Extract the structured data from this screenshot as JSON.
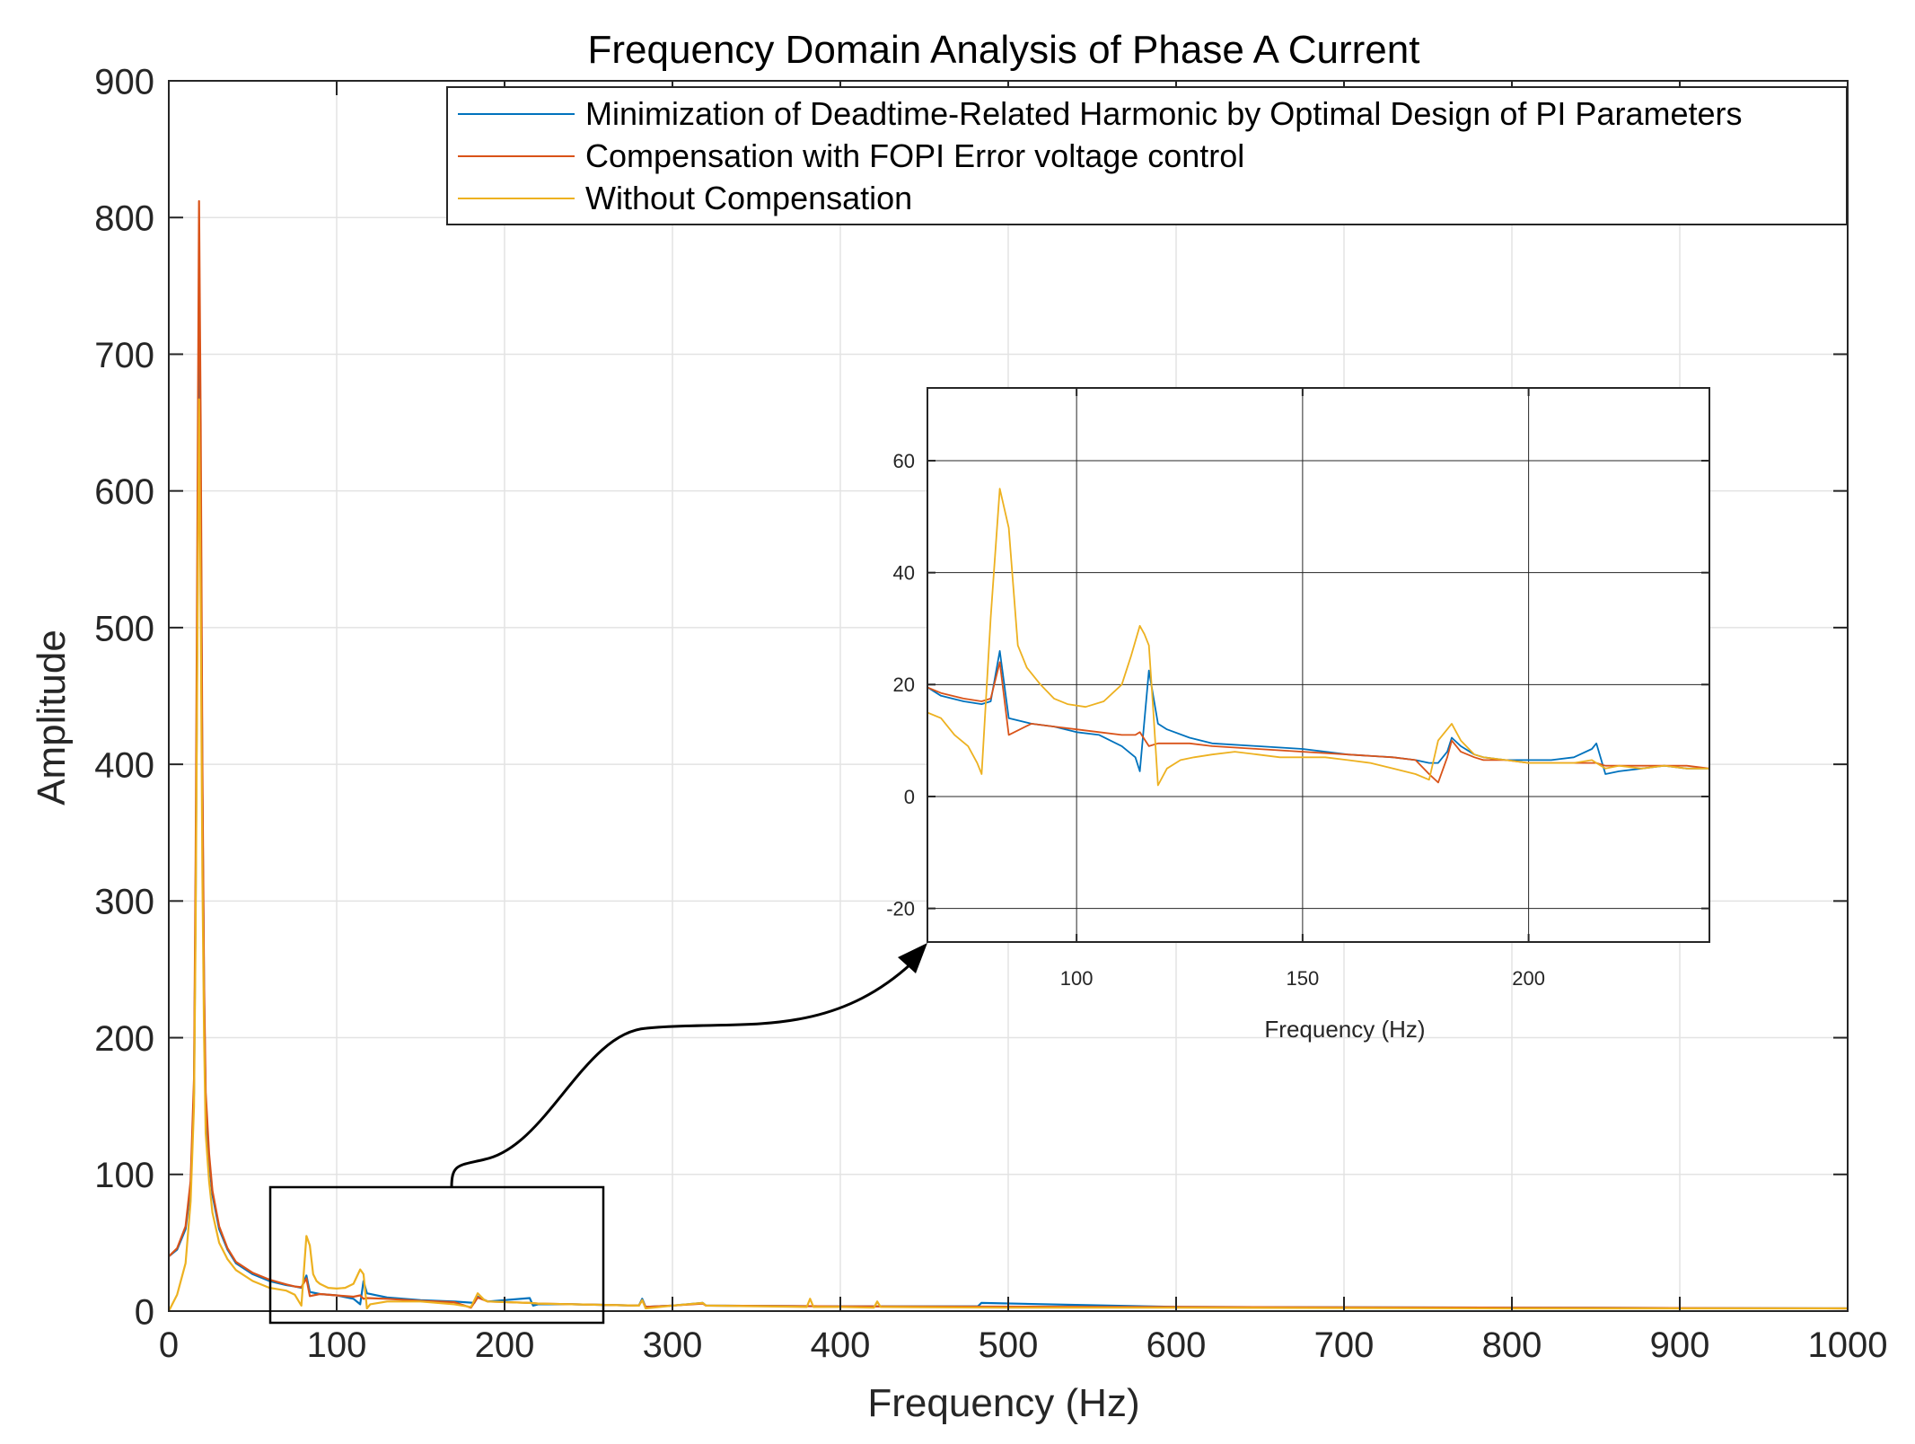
{
  "chart_data": [
    {
      "type": "line",
      "title": "Frequency Domain Analysis of Phase A Current",
      "xlabel": "Frequency (Hz)",
      "ylabel": "Amplitude",
      "xlim": [
        0,
        1000
      ],
      "ylim": [
        0,
        900
      ],
      "xticks": [
        0,
        100,
        200,
        300,
        400,
        500,
        600,
        700,
        800,
        900,
        1000
      ],
      "yticks": [
        0,
        100,
        200,
        300,
        400,
        500,
        600,
        700,
        800,
        900
      ],
      "grid": true,
      "legend_position": "top-right",
      "series": [
        {
          "name": "Minimization of Deadtime-Related Harmonic by Optimal Design of PI Parameters",
          "color": "#0072BD",
          "x": [
            0,
            5,
            10,
            13,
            15,
            16,
            17,
            18,
            19,
            20,
            21,
            22,
            24,
            26,
            30,
            35,
            40,
            50,
            60,
            70,
            75,
            79,
            82,
            84,
            90,
            100,
            110,
            114,
            116,
            118,
            130,
            150,
            170,
            182,
            184,
            190,
            215,
            217,
            220,
            240,
            280,
            282,
            284,
            300,
            318,
            320,
            400,
            482,
            484,
            600,
            800,
            1000
          ],
          "y": [
            40,
            45,
            60,
            90,
            160,
            300,
            500,
            750,
            600,
            380,
            230,
            150,
            110,
            85,
            60,
            45,
            35,
            27,
            22,
            19,
            18,
            17,
            26,
            14,
            12.5,
            11.5,
            9,
            5,
            22,
            13,
            10,
            8,
            7,
            6,
            10.5,
            7,
            9.5,
            4,
            5,
            5,
            4,
            9,
            3,
            4,
            6,
            4,
            3.5,
            3.5,
            6,
            3,
            2.5,
            2
          ]
        },
        {
          "name": "Compensation with FOPI Error voltage control",
          "color": "#D95319",
          "x": [
            0,
            5,
            10,
            13,
            15,
            16,
            17,
            18,
            19,
            20,
            21,
            22,
            24,
            26,
            30,
            35,
            40,
            50,
            60,
            70,
            75,
            79,
            82,
            84,
            90,
            100,
            110,
            114,
            116,
            118,
            130,
            150,
            170,
            180,
            184,
            190,
            215,
            220,
            240,
            280,
            282,
            284,
            300,
            318,
            320,
            400,
            600,
            800,
            1000
          ],
          "y": [
            40,
            46,
            62,
            95,
            170,
            330,
            560,
            812,
            650,
            400,
            240,
            160,
            115,
            88,
            62,
            46,
            36,
            28,
            23,
            19.5,
            18,
            17.5,
            24,
            11,
            12.5,
            11.5,
            10.5,
            11.5,
            9,
            9.5,
            9,
            7.5,
            6.5,
            2.5,
            10,
            7,
            6,
            5.5,
            5,
            4,
            8,
            3,
            4,
            5.5,
            4,
            3.5,
            3,
            2.5,
            2
          ]
        },
        {
          "name": "Without Compensation",
          "color": "#EDB120",
          "x": [
            0,
            5,
            10,
            13,
            15,
            16,
            17,
            18,
            19,
            20,
            21,
            22,
            24,
            26,
            30,
            35,
            40,
            50,
            60,
            70,
            75,
            79,
            82,
            84,
            86,
            88,
            90,
            95,
            100,
            105,
            110,
            114,
            116,
            118,
            120,
            130,
            150,
            170,
            180,
            184,
            188,
            190,
            215,
            220,
            240,
            280,
            282,
            284,
            300,
            318,
            320,
            380,
            382,
            384,
            400,
            420,
            422,
            424,
            500,
            600,
            800,
            1000
          ],
          "y": [
            0,
            12,
            35,
            80,
            150,
            280,
            480,
            667,
            520,
            320,
            200,
            130,
            95,
            72,
            50,
            38,
            30,
            22,
            17,
            15,
            12,
            4,
            55,
            48,
            27,
            22,
            20,
            17,
            16.5,
            17,
            20,
            30.5,
            27,
            2,
            5,
            7,
            7,
            5,
            3,
            13,
            8,
            7,
            6,
            5.5,
            5,
            4,
            8,
            2,
            4,
            6,
            4,
            3,
            9,
            3,
            3,
            2.5,
            7,
            3,
            2.5,
            2.5,
            2,
            2
          ]
        }
      ]
    },
    {
      "type": "line",
      "role": "inset",
      "xlabel": "Frequency (Hz)",
      "ylabel": "",
      "xlim": [
        67,
        240
      ],
      "ylim": [
        -26,
        73
      ],
      "xticks": [
        100,
        150,
        200
      ],
      "yticks": [
        -20,
        0,
        20,
        40,
        60
      ],
      "grid": true,
      "series": [
        {
          "name": "Minimization of Deadtime-Related Harmonic by Optimal Design of PI Parameters",
          "color": "#0072BD",
          "x": [
            67,
            70,
            75,
            79,
            81,
            83,
            85,
            90,
            95,
            100,
            105,
            110,
            113,
            114,
            116,
            118,
            120,
            125,
            130,
            140,
            150,
            160,
            170,
            175,
            178,
            180,
            182,
            183,
            185,
            188,
            190,
            195,
            200,
            205,
            210,
            214,
            215,
            217,
            220,
            225,
            230,
            235,
            240
          ],
          "y": [
            19.5,
            18,
            17,
            16.5,
            17,
            26,
            14,
            13,
            12.5,
            11.5,
            11,
            9,
            7,
            4.5,
            22.5,
            13,
            12,
            10.5,
            9.5,
            9,
            8.5,
            7.5,
            7,
            6.5,
            6,
            6,
            8,
            10.5,
            9,
            7.5,
            7,
            6.5,
            6.5,
            6.5,
            7,
            8.5,
            9.5,
            4,
            4.5,
            5,
            5.5,
            5,
            5
          ]
        },
        {
          "name": "Compensation with FOPI Error voltage control",
          "color": "#D95319",
          "x": [
            67,
            70,
            75,
            79,
            81,
            83,
            85,
            90,
            95,
            100,
            105,
            110,
            113,
            114,
            116,
            118,
            120,
            125,
            130,
            140,
            150,
            160,
            170,
            175,
            178,
            180,
            182,
            183,
            185,
            188,
            190,
            195,
            200,
            205,
            210,
            214,
            215,
            217,
            220,
            225,
            230,
            235,
            240
          ],
          "y": [
            19.5,
            18.5,
            17.5,
            17,
            17.5,
            24,
            11,
            13,
            12.5,
            12,
            11.5,
            11,
            11,
            11.5,
            9,
            9.5,
            9.5,
            9.5,
            9,
            8.5,
            8,
            7.5,
            7,
            6.5,
            4,
            2.5,
            7,
            10,
            8,
            7,
            6.5,
            6.5,
            6,
            6,
            6,
            6,
            6,
            5.5,
            5.5,
            5.5,
            5.5,
            5.5,
            5
          ]
        },
        {
          "name": "Without Compensation",
          "color": "#EDB120",
          "x": [
            67,
            70,
            73,
            76,
            78,
            79,
            81,
            83,
            85,
            87,
            89,
            92,
            95,
            98,
            102,
            106,
            110,
            112,
            114,
            115,
            116,
            117,
            118,
            120,
            123,
            126,
            130,
            135,
            140,
            145,
            150,
            155,
            160,
            165,
            170,
            175,
            178,
            180,
            183,
            185,
            188,
            190,
            195,
            200,
            205,
            210,
            214,
            215,
            217,
            220,
            225,
            230,
            235,
            240
          ],
          "y": [
            15,
            14,
            11,
            9,
            6,
            4,
            32,
            55,
            48,
            27,
            23,
            20,
            17.5,
            16.5,
            16,
            17,
            20,
            25,
            30.5,
            29,
            27,
            15,
            2,
            5,
            6.5,
            7,
            7.5,
            8,
            7.5,
            7,
            7,
            7,
            6.5,
            6,
            5,
            4,
            3,
            10,
            13,
            10,
            7.5,
            7,
            6.5,
            6,
            6,
            6,
            6.5,
            6,
            5,
            5.5,
            5,
            5.5,
            5,
            5
          ]
        }
      ]
    }
  ]
}
